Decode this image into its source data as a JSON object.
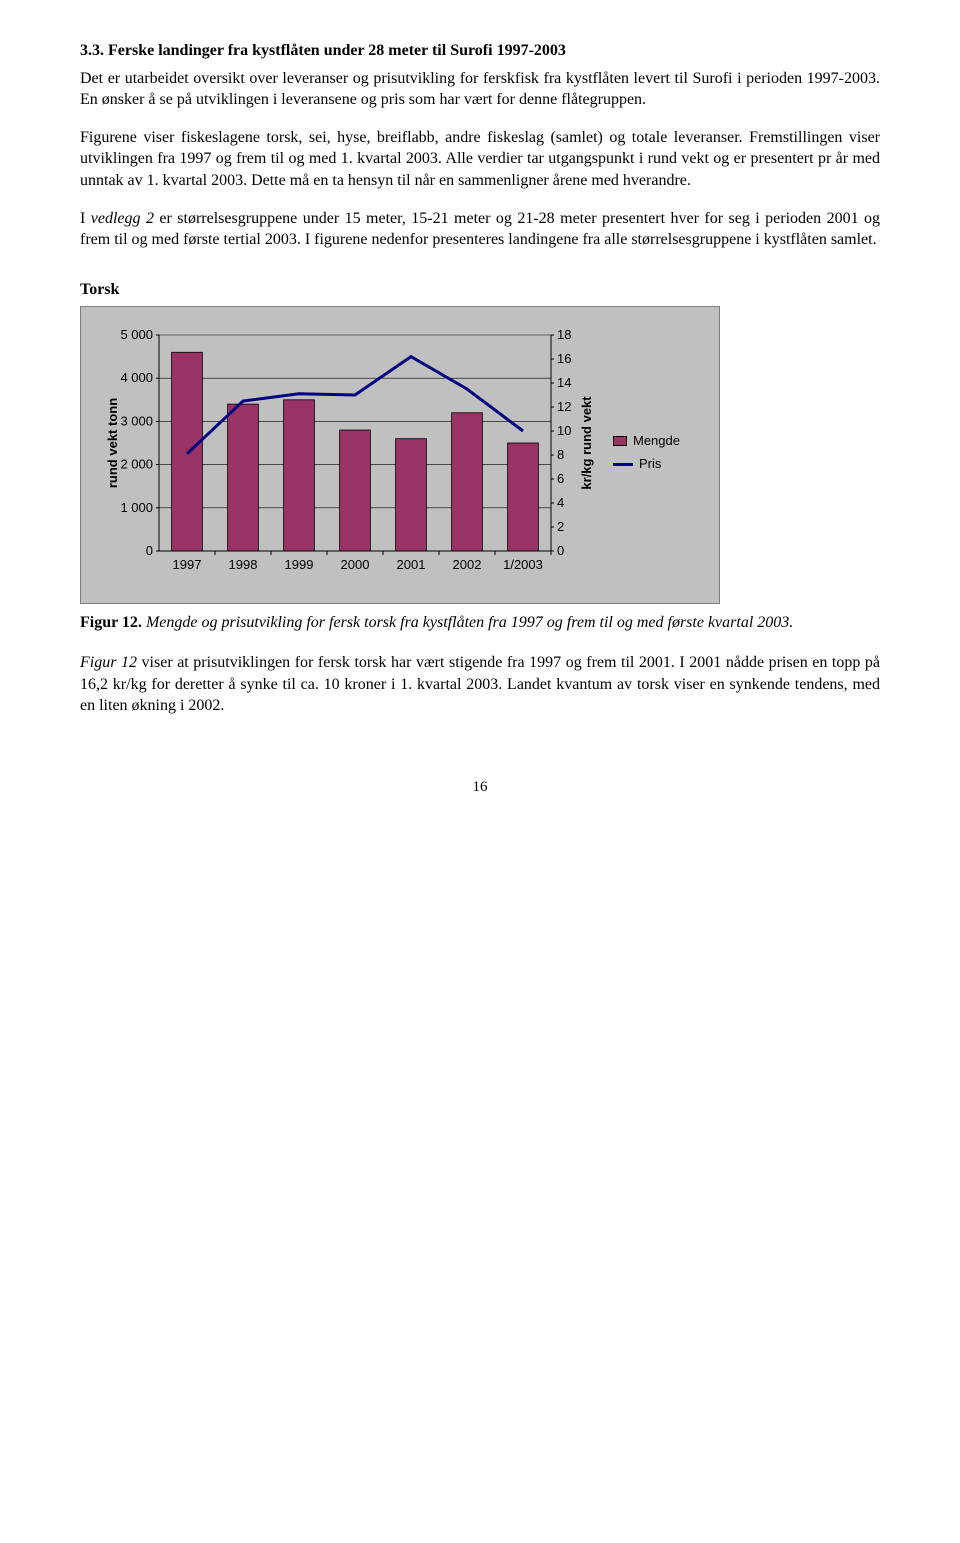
{
  "heading": "3.3. Ferske landinger fra kystflåten under 28 meter til Surofi 1997-2003",
  "para1": "Det er utarbeidet oversikt over leveranser og prisutvikling for ferskfisk fra kystflåten levert til Surofi i perioden 1997-2003. En ønsker å se på utviklingen i leveransene og pris som har vært for denne flåtegruppen.",
  "para2": "Figurene viser fiskeslagene torsk, sei, hyse, breiflabb, andre fiskeslag (samlet) og totale leveranser. Fremstillingen viser utviklingen fra 1997 og frem til og med 1. kvartal 2003. Alle verdier tar utgangspunkt i rund vekt og er presentert pr år med unntak av 1. kvartal 2003. Dette må en ta hensyn til når en sammenligner årene med hverandre.",
  "para3_pre": "I ",
  "para3_em": "vedlegg 2",
  "para3_post": " er størrelsesgruppene under 15 meter, 15-21 meter og 21-28 meter presentert hver for seg i perioden 2001 og frem til og med første tertial 2003. I figurene nedenfor presenteres landingene fra alle størrelsesgruppene i kystflåten samlet.",
  "chart_title": "Torsk",
  "chart": {
    "type": "bar_with_line",
    "categories": [
      "1997",
      "1998",
      "1999",
      "2000",
      "2001",
      "2002",
      "1/2003"
    ],
    "bars": [
      4600,
      3400,
      3500,
      2800,
      2600,
      3200,
      2500
    ],
    "line": [
      8.1,
      12.5,
      13.1,
      13.0,
      16.2,
      13.5,
      10.0
    ],
    "y_left": {
      "min": 0,
      "max": 5000,
      "step": 1000,
      "label": "rund vekt tonn"
    },
    "y_right": {
      "min": 0,
      "max": 18,
      "step": 2,
      "label": "kr/kg rund vekt"
    },
    "bar_color": "#993366",
    "bar_border": "#000000",
    "line_color": "#000080",
    "plot_bg": "#c0c0c0",
    "outer_bg": "#c0c0c0",
    "grid_color": "#000000",
    "axis_fontsize": 13,
    "label_fontsize": 13,
    "bar_width_ratio": 0.55,
    "line_width": 3
  },
  "legend": {
    "mengde": "Mengde",
    "pris": "Pris"
  },
  "figure_caption_label": "Figur 12.",
  "figure_caption_text": " Mengde og prisutvikling for fersk torsk fra kystflåten fra 1997 og frem til og med første kvartal 2003.",
  "para4_pre": "",
  "para4_em": "Figur 12 ",
  "para4_post": " viser at prisutviklingen for fersk torsk har vært stigende fra 1997 og frem til 2001. I 2001 nådde prisen en topp på 16,2 kr/kg  for deretter å synke til ca. 10 kroner i 1. kvartal 2003. Landet kvantum av torsk viser en synkende tendens, med en liten økning i 2002.",
  "page_number": "16"
}
